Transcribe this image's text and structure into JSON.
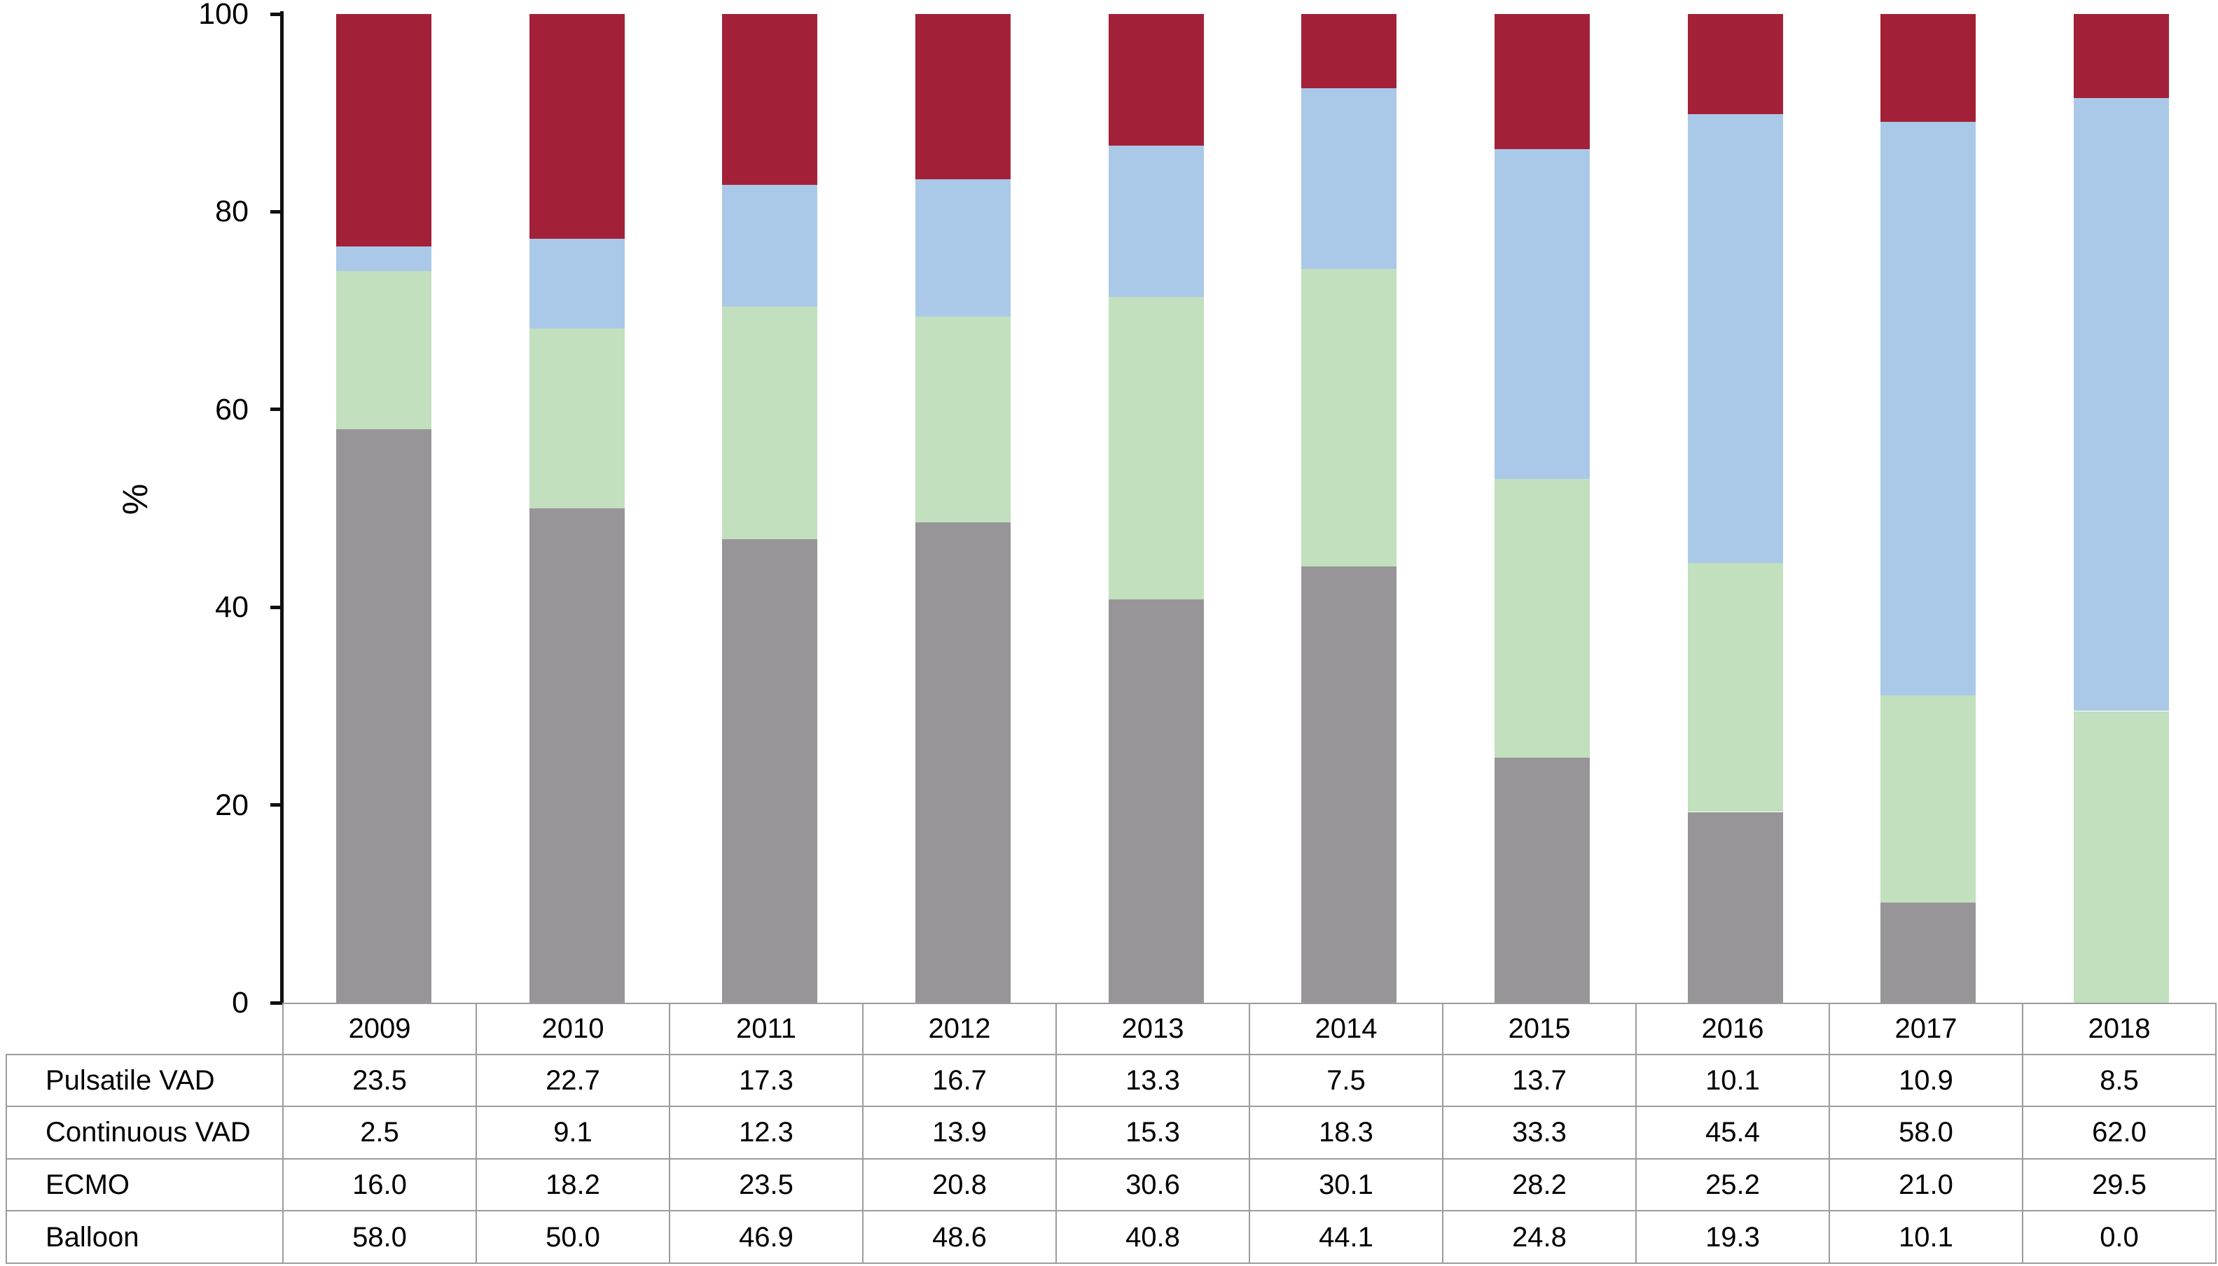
{
  "chart_data": {
    "type": "bar",
    "stacked": true,
    "stack_order": "bottom-to-top",
    "title": "",
    "xlabel": "",
    "ylabel": "%",
    "ylim": [
      0,
      100
    ],
    "yticks": [
      0,
      20,
      40,
      60,
      80,
      100
    ],
    "grid": false,
    "legend_position": "table-below",
    "categories": [
      "2009",
      "2010",
      "2011",
      "2012",
      "2013",
      "2014",
      "2015",
      "2016",
      "2017",
      "2018"
    ],
    "series": [
      {
        "name": "Balloon",
        "color": "#989598",
        "values": [
          58.0,
          50.0,
          46.9,
          48.6,
          40.8,
          44.1,
          24.8,
          19.3,
          10.1,
          0.0
        ]
      },
      {
        "name": "ECMO",
        "color": "#c2dfbe",
        "values": [
          16.0,
          18.2,
          23.5,
          20.8,
          30.6,
          30.1,
          28.2,
          25.2,
          21.0,
          29.5
        ]
      },
      {
        "name": "Continuous VAD",
        "color": "#aac9e8",
        "values": [
          2.5,
          9.1,
          12.3,
          13.9,
          15.3,
          18.3,
          33.3,
          45.4,
          58.0,
          62.0
        ]
      },
      {
        "name": "Pulsatile VAD",
        "color": "#a32138",
        "values": [
          23.5,
          22.7,
          17.3,
          16.7,
          13.3,
          7.5,
          13.7,
          10.1,
          10.9,
          8.5
        ]
      }
    ]
  },
  "table": {
    "year_header": [
      "2009",
      "2010",
      "2011",
      "2012",
      "2013",
      "2014",
      "2015",
      "2016",
      "2017",
      "2018"
    ],
    "rows": [
      {
        "label": "Pulsatile VAD",
        "values": [
          "23.5",
          "22.7",
          "17.3",
          "16.7",
          "13.3",
          "7.5",
          "13.7",
          "10.1",
          "10.9",
          "8.5"
        ]
      },
      {
        "label": "Continuous VAD",
        "values": [
          "2.5",
          "9.1",
          "12.3",
          "13.9",
          "15.3",
          "18.3",
          "33.3",
          "45.4",
          "58.0",
          "62.0"
        ]
      },
      {
        "label": "ECMO",
        "values": [
          "16.0",
          "18.2",
          "23.5",
          "20.8",
          "30.6",
          "30.1",
          "28.2",
          "25.2",
          "21.0",
          "29.5"
        ]
      },
      {
        "label": "Balloon",
        "values": [
          "58.0",
          "50.0",
          "46.9",
          "48.6",
          "40.8",
          "44.1",
          "24.8",
          "19.3",
          "10.1",
          "0.0"
        ]
      }
    ],
    "border_color": "#9c9c9c"
  }
}
